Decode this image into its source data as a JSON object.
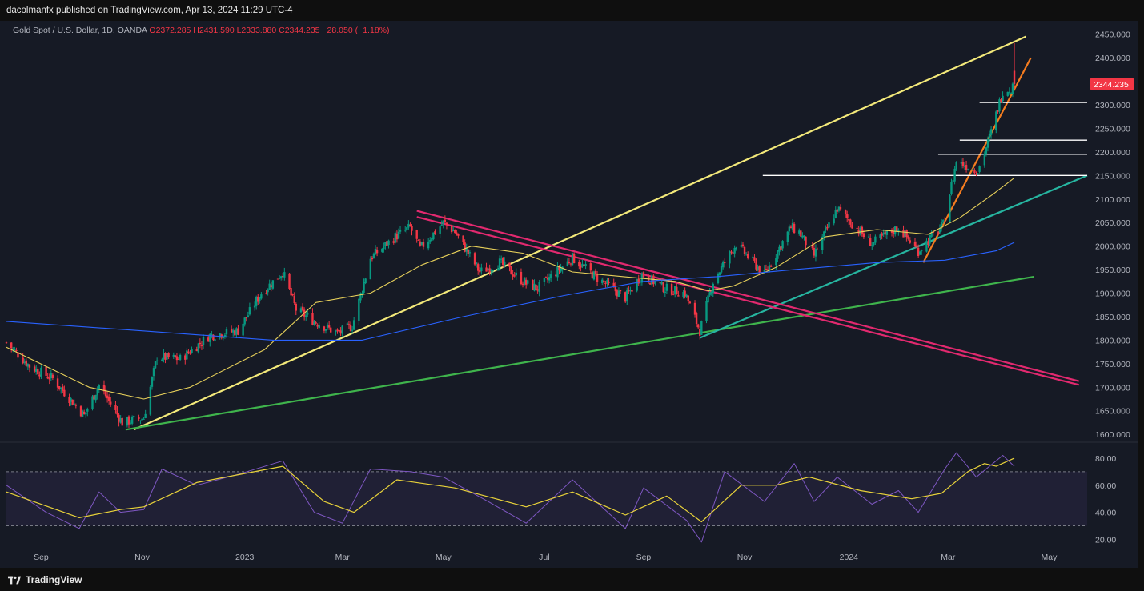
{
  "header": {
    "publisher_line": "dacolmanfx published on TradingView.com, Apr 13, 2024 11:29 UTC-4"
  },
  "legend": {
    "symbol": "Gold Spot / U.S. Dollar, 1D, OANDA",
    "ohlc": "O2372.285  H2431.590  L2333.880  C2344.235  −28.050  (−1.18%)"
  },
  "footer": {
    "brand": "TradingView"
  },
  "colors": {
    "up": "#089981",
    "down": "#f23645",
    "background": "#161a25",
    "sma_fast": "#e7d05a",
    "sma_slow": "#2962ff",
    "rsi": "#7e57c2",
    "rsi_ma": "#e8d23a"
  },
  "chart_data": [
    {
      "type": "candlestick",
      "symbol": "Gold Spot / U.S. Dollar",
      "interval": "1D",
      "x_ticks": [
        "Sep",
        "Nov",
        "2023",
        "Mar",
        "May",
        "Jul",
        "Sep",
        "Nov",
        "2024",
        "Mar",
        "May"
      ],
      "y_ticks": [
        "2450.000",
        "2400.000",
        "2350.000",
        "2300.000",
        "2250.000",
        "2200.000",
        "2150.000",
        "2100.000",
        "2050.000",
        "2000.000",
        "1950.000",
        "1900.000",
        "1850.000",
        "1800.000",
        "1750.000",
        "1700.000",
        "1650.000",
        "1600.000"
      ],
      "ylim": [
        1585,
        2475
      ],
      "last_price_label": "2344.235",
      "last_ohlc": {
        "open": 2372.285,
        "high": 2431.59,
        "low": 2333.88,
        "close": 2344.235
      },
      "price_path": [
        [
          "2022-08-12",
          1795
        ],
        [
          "2022-08-26",
          1745
        ],
        [
          "2022-09-09",
          1718
        ],
        [
          "2022-09-28",
          1640
        ],
        [
          "2022-10-07",
          1705
        ],
        [
          "2022-10-21",
          1625
        ],
        [
          "2022-11-03",
          1635
        ],
        [
          "2022-11-11",
          1765
        ],
        [
          "2022-11-25",
          1760
        ],
        [
          "2022-12-13",
          1810
        ],
        [
          "2022-12-30",
          1820
        ],
        [
          "2023-01-13",
          1900
        ],
        [
          "2023-01-26",
          1945
        ],
        [
          "2023-02-03",
          1865
        ],
        [
          "2023-02-14",
          1840
        ],
        [
          "2023-02-28",
          1815
        ],
        [
          "2023-03-09",
          1830
        ],
        [
          "2023-03-20",
          1975
        ],
        [
          "2023-04-04",
          2020
        ],
        [
          "2023-04-13",
          2040
        ],
        [
          "2023-04-19",
          1995
        ],
        [
          "2023-05-03",
          2050
        ],
        [
          "2023-05-10",
          2030
        ],
        [
          "2023-05-25",
          1945
        ],
        [
          "2023-06-06",
          1965
        ],
        [
          "2023-06-22",
          1920
        ],
        [
          "2023-06-29",
          1910
        ],
        [
          "2023-07-20",
          1975
        ],
        [
          "2023-08-03",
          1935
        ],
        [
          "2023-08-21",
          1890
        ],
        [
          "2023-08-31",
          1940
        ],
        [
          "2023-09-14",
          1910
        ],
        [
          "2023-09-26",
          1900
        ],
        [
          "2023-10-05",
          1820
        ],
        [
          "2023-10-13",
          1925
        ],
        [
          "2023-10-27",
          2005
        ],
        [
          "2023-11-13",
          1940
        ],
        [
          "2023-11-29",
          2040
        ],
        [
          "2023-12-04",
          2030
        ],
        [
          "2023-12-13",
          1980
        ],
        [
          "2023-12-27",
          2080
        ],
        [
          "2024-01-17",
          2005
        ],
        [
          "2024-02-02",
          2040
        ],
        [
          "2024-02-14",
          1990
        ],
        [
          "2024-02-29",
          2045
        ],
        [
          "2024-03-08",
          2180
        ],
        [
          "2024-03-21",
          2160
        ],
        [
          "2024-03-28",
          2230
        ],
        [
          "2024-04-05",
          2330
        ],
        [
          "2024-04-10",
          2335
        ],
        [
          "2024-04-12",
          2344
        ]
      ],
      "indicators": [
        {
          "name": "SMA fast",
          "color": "#e7d05a",
          "points": [
            [
              "2022-08-12",
              1785
            ],
            [
              "2022-10-01",
              1700
            ],
            [
              "2022-11-03",
              1675
            ],
            [
              "2022-12-01",
              1700
            ],
            [
              "2023-01-15",
              1780
            ],
            [
              "2023-02-15",
              1880
            ],
            [
              "2023-03-20",
              1900
            ],
            [
              "2023-04-20",
              1960
            ],
            [
              "2023-05-20",
              2000
            ],
            [
              "2023-06-20",
              1985
            ],
            [
              "2023-07-20",
              1945
            ],
            [
              "2023-08-20",
              1935
            ],
            [
              "2023-09-20",
              1925
            ],
            [
              "2023-10-10",
              1905
            ],
            [
              "2023-10-25",
              1915
            ],
            [
              "2023-11-20",
              1955
            ],
            [
              "2023-12-20",
              2020
            ],
            [
              "2024-01-20",
              2035
            ],
            [
              "2024-02-20",
              2025
            ],
            [
              "2024-03-10",
              2060
            ],
            [
              "2024-03-30",
              2110
            ],
            [
              "2024-04-12",
              2145
            ]
          ]
        },
        {
          "name": "SMA slow",
          "color": "#2962ff",
          "points": [
            [
              "2022-08-12",
              1840
            ],
            [
              "2022-11-01",
              1820
            ],
            [
              "2023-01-20",
              1800
            ],
            [
              "2023-03-15",
              1800
            ],
            [
              "2023-05-15",
              1850
            ],
            [
              "2023-07-15",
              1895
            ],
            [
              "2023-09-01",
              1925
            ],
            [
              "2023-10-15",
              1935
            ],
            [
              "2023-12-01",
              1950
            ],
            [
              "2024-01-20",
              1965
            ],
            [
              "2024-03-01",
              1970
            ],
            [
              "2024-04-01",
              1990
            ],
            [
              "2024-04-12",
              2008
            ]
          ]
        }
      ],
      "annotations": [
        {
          "label": "yellow trendline",
          "color": "#f3e97a",
          "from": [
            "2022-10-28",
            1610
          ],
          "to": [
            "2024-04-19",
            2445
          ]
        },
        {
          "label": "green trendline",
          "color": "#3fb44c",
          "from": [
            "2022-10-23",
            1610
          ],
          "to": [
            "2024-04-24",
            1935
          ]
        },
        {
          "label": "teal trendline",
          "color": "#26b5a0",
          "from": [
            "2023-10-05",
            1805
          ],
          "to": [
            "2024-05-26",
            2150
          ]
        },
        {
          "label": "magenta upper",
          "color": "#e2296f",
          "from": [
            "2023-04-17",
            2075
          ],
          "to": [
            "2024-05-21",
            1713
          ]
        },
        {
          "label": "magenta lower",
          "color": "#e2296f",
          "from": [
            "2023-04-17",
            2062
          ],
          "to": [
            "2024-05-21",
            1705
          ]
        },
        {
          "label": "orange trendline",
          "color": "#f57c1f",
          "from": [
            "2024-02-17",
            1965
          ],
          "to": [
            "2024-04-22",
            2400
          ]
        },
        {
          "label": "resistance 2305",
          "color": "#ffffff",
          "from": [
            "2024-03-22",
            2305
          ],
          "to": [
            "2024-05-26",
            2305
          ]
        },
        {
          "label": "resistance 2225",
          "color": "#ffffff",
          "from": [
            "2024-03-10",
            2225
          ],
          "to": [
            "2024-05-26",
            2225
          ]
        },
        {
          "label": "resistance 2195",
          "color": "#ffffff",
          "from": [
            "2024-02-26",
            2195
          ],
          "to": [
            "2024-05-26",
            2195
          ]
        },
        {
          "label": "resistance 2150",
          "color": "#ffffff",
          "from": [
            "2023-11-12",
            2150
          ],
          "to": [
            "2024-05-26",
            2150
          ]
        }
      ]
    },
    {
      "type": "line",
      "indicator": "RSI",
      "y_ticks": [
        "80.00",
        "60.00",
        "40.00",
        "20.00"
      ],
      "ylim": [
        12,
        90
      ],
      "bands": [
        70,
        30
      ],
      "series": [
        {
          "color": "#7e57c2",
          "points": [
            [
              "2022-08-12",
              60
            ],
            [
              "2022-09-05",
              40
            ],
            [
              "2022-09-25",
              28
            ],
            [
              "2022-10-07",
              55
            ],
            [
              "2022-10-20",
              40
            ],
            [
              "2022-11-03",
              42
            ],
            [
              "2022-11-14",
              72
            ],
            [
              "2022-12-05",
              60
            ],
            [
              "2022-12-30",
              68
            ],
            [
              "2023-01-26",
              78
            ],
            [
              "2023-02-14",
              40
            ],
            [
              "2023-03-03",
              32
            ],
            [
              "2023-03-20",
              72
            ],
            [
              "2023-04-13",
              70
            ],
            [
              "2023-05-03",
              66
            ],
            [
              "2023-05-30",
              48
            ],
            [
              "2023-06-22",
              32
            ],
            [
              "2023-07-20",
              64
            ],
            [
              "2023-08-21",
              28
            ],
            [
              "2023-09-01",
              58
            ],
            [
              "2023-09-27",
              34
            ],
            [
              "2023-10-06",
              18
            ],
            [
              "2023-10-20",
              70
            ],
            [
              "2023-11-13",
              48
            ],
            [
              "2023-12-01",
              76
            ],
            [
              "2023-12-13",
              48
            ],
            [
              "2023-12-27",
              66
            ],
            [
              "2024-01-17",
              46
            ],
            [
              "2024-02-02",
              56
            ],
            [
              "2024-02-14",
              40
            ],
            [
              "2024-03-01",
              72
            ],
            [
              "2024-03-08",
              84
            ],
            [
              "2024-03-20",
              66
            ],
            [
              "2024-04-05",
              82
            ],
            [
              "2024-04-12",
              74
            ]
          ]
        },
        {
          "color": "#e8d23a",
          "points": [
            [
              "2022-08-12",
              55
            ],
            [
              "2022-09-25",
              36
            ],
            [
              "2022-10-20",
              42
            ],
            [
              "2022-11-03",
              44
            ],
            [
              "2022-12-05",
              62
            ],
            [
              "2023-01-26",
              74
            ],
            [
              "2023-02-20",
              48
            ],
            [
              "2023-03-10",
              40
            ],
            [
              "2023-04-05",
              64
            ],
            [
              "2023-05-10",
              58
            ],
            [
              "2023-06-22",
              44
            ],
            [
              "2023-07-20",
              55
            ],
            [
              "2023-08-21",
              38
            ],
            [
              "2023-09-15",
              52
            ],
            [
              "2023-10-06",
              33
            ],
            [
              "2023-10-30",
              60
            ],
            [
              "2023-11-20",
              60
            ],
            [
              "2023-12-10",
              66
            ],
            [
              "2024-01-10",
              56
            ],
            [
              "2024-02-10",
              50
            ],
            [
              "2024-02-28",
              54
            ],
            [
              "2024-03-15",
              70
            ],
            [
              "2024-03-25",
              76
            ],
            [
              "2024-04-01",
              74
            ],
            [
              "2024-04-12",
              80
            ]
          ]
        }
      ]
    }
  ]
}
